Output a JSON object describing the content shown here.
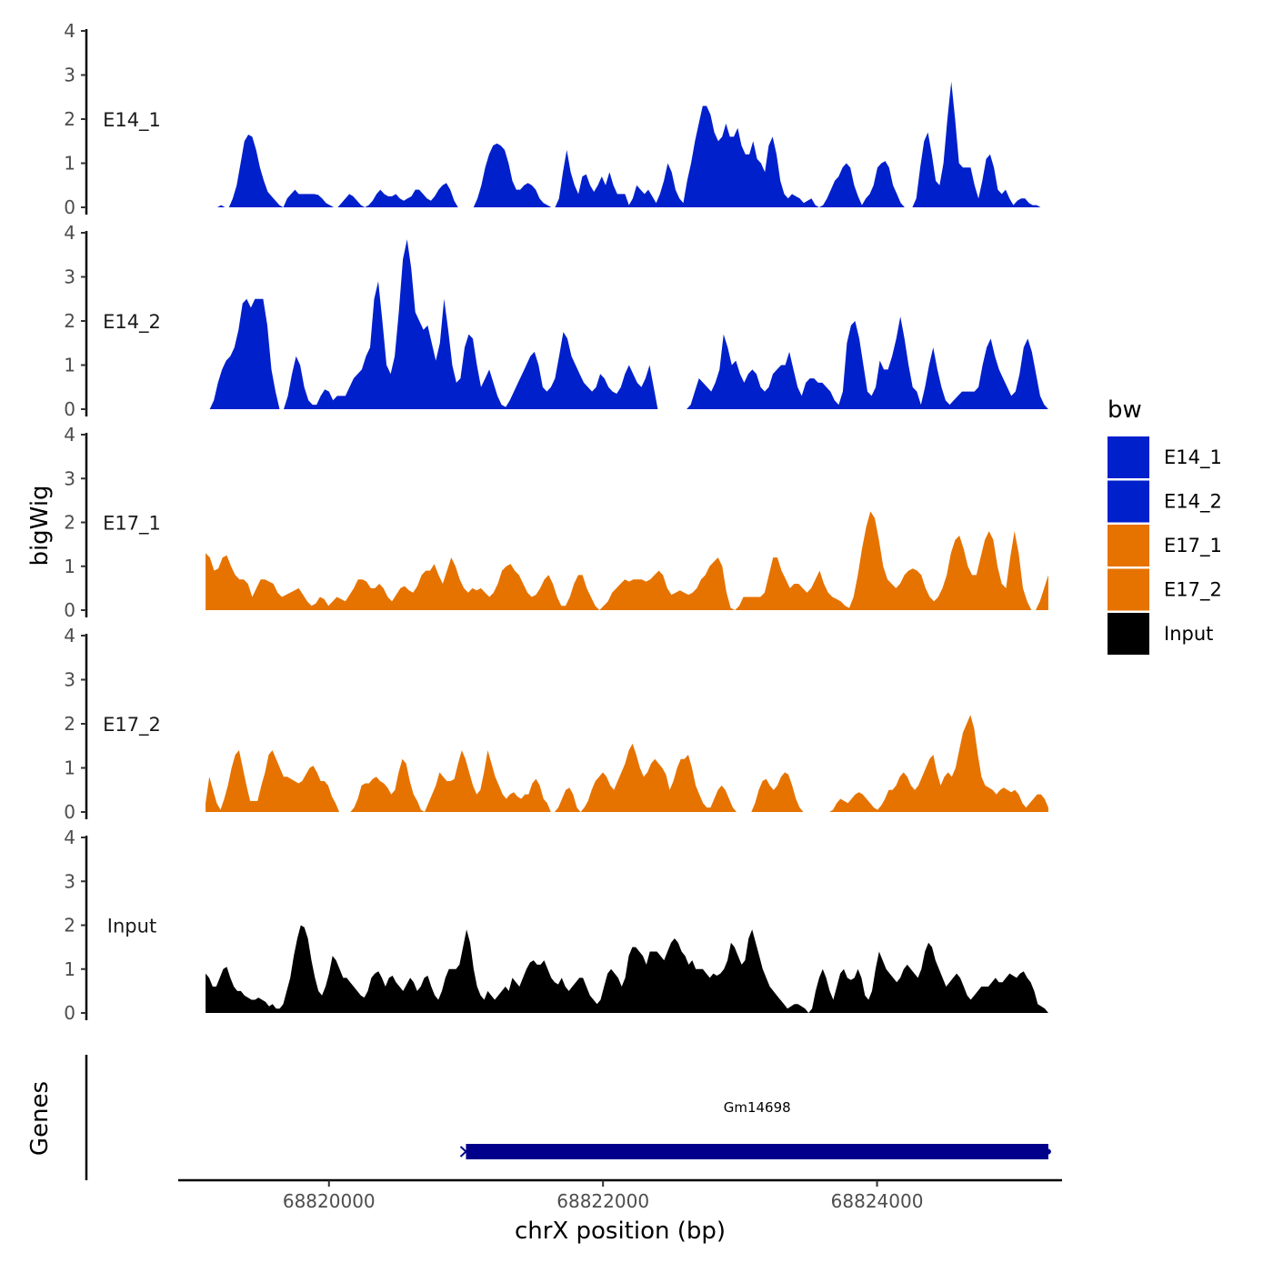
{
  "chart_data": {
    "type": "area",
    "title": "",
    "ylabel": "bigWig",
    "genes_label": "Genes",
    "xlabel": "chrX position (bp)",
    "xlim": [
      68818900,
      68825350
    ],
    "data_range": [
      68819100,
      68825250
    ],
    "ylim": [
      0,
      4
    ],
    "y_ticks": [
      0,
      1,
      2,
      3,
      4
    ],
    "x_ticks": [
      {
        "value": 68820000,
        "label": "68820000"
      },
      {
        "value": 68822000,
        "label": "68822000"
      },
      {
        "value": 68824000,
        "label": "68824000"
      }
    ],
    "tracks": [
      {
        "name": "E14_1",
        "color": "#0020cc",
        "values": [
          0,
          0,
          0,
          0,
          0.05,
          0,
          0,
          0.2,
          0.5,
          1.0,
          1.5,
          1.65,
          1.6,
          1.3,
          0.9,
          0.6,
          0.35,
          0.25,
          0.15,
          0.05,
          0,
          0.2,
          0.3,
          0.4,
          0.3,
          0.3,
          0.3,
          0.3,
          0.3,
          0.28,
          0.2,
          0.1,
          0.05,
          0,
          0,
          0.1,
          0.2,
          0.3,
          0.25,
          0.15,
          0.05,
          0,
          0.05,
          0.15,
          0.3,
          0.4,
          0.3,
          0.25,
          0.25,
          0.3,
          0.2,
          0.15,
          0.2,
          0.25,
          0.4,
          0.4,
          0.3,
          0.2,
          0.15,
          0.25,
          0.4,
          0.5,
          0.55,
          0.4,
          0.15,
          0,
          0,
          0,
          0,
          0,
          0.2,
          0.5,
          0.9,
          1.2,
          1.4,
          1.45,
          1.4,
          1.3,
          1.0,
          0.6,
          0.4,
          0.4,
          0.5,
          0.55,
          0.5,
          0.4,
          0.2,
          0.1,
          0.05,
          0,
          0,
          0.2,
          0.8,
          1.3,
          0.8,
          0.5,
          0.3,
          0.7,
          0.75,
          0.5,
          0.35,
          0.5,
          0.7,
          0.5,
          0.8,
          0.5,
          0.3,
          0.3,
          0.3,
          0.05,
          0.2,
          0.5,
          0.4,
          0.3,
          0.4,
          0.25,
          0.1,
          0.3,
          0.6,
          1.0,
          0.8,
          0.4,
          0.2,
          0.1,
          0.6,
          1.0,
          1.5,
          1.9,
          2.3,
          2.3,
          2.1,
          1.7,
          1.5,
          1.6,
          1.9,
          1.6,
          1.6,
          1.8,
          1.4,
          1.2,
          1.2,
          1.5,
          1.1,
          1.0,
          0.8,
          1.4,
          1.6,
          1.2,
          0.6,
          0.3,
          0.2,
          0.3,
          0.25,
          0.2,
          0.1,
          0.15,
          0.2,
          0.05,
          0,
          0.05,
          0.2,
          0.4,
          0.6,
          0.7,
          0.9,
          1.0,
          0.9,
          0.5,
          0.25,
          0.05,
          0.2,
          0.3,
          0.5,
          0.9,
          1.0,
          1.05,
          0.9,
          0.5,
          0.3,
          0.1,
          0,
          0,
          0,
          0.2,
          0.9,
          1.5,
          1.7,
          1.2,
          0.6,
          0.5,
          1.0,
          2.0,
          2.85,
          2.0,
          1.0,
          0.9,
          0.9,
          0.9,
          0.5,
          0.2,
          0.6,
          1.1,
          1.2,
          0.9,
          0.4,
          0.3,
          0.4,
          0.2,
          0.05,
          0.15,
          0.2,
          0.2,
          0.1,
          0.05,
          0.05,
          0,
          0,
          0
        ]
      },
      {
        "name": "E14_2",
        "color": "#0020cc",
        "values": [
          0,
          0,
          0.2,
          0.6,
          0.9,
          1.1,
          1.2,
          1.4,
          1.8,
          2.4,
          2.5,
          2.3,
          2.5,
          2.5,
          2.5,
          1.9,
          0.9,
          0.4,
          0,
          0,
          0.3,
          0.8,
          1.2,
          1.0,
          0.5,
          0.2,
          0.1,
          0.1,
          0.3,
          0.45,
          0.4,
          0.2,
          0.3,
          0.3,
          0.3,
          0.5,
          0.7,
          0.8,
          0.9,
          1.2,
          1.4,
          2.5,
          2.9,
          2.0,
          1.0,
          0.8,
          1.2,
          2.2,
          3.4,
          3.85,
          3.2,
          2.2,
          2.0,
          1.8,
          1.9,
          1.5,
          1.1,
          1.5,
          2.5,
          1.8,
          1.0,
          0.6,
          0.7,
          1.4,
          1.7,
          1.6,
          1.0,
          0.5,
          0.7,
          0.9,
          0.6,
          0.3,
          0.1,
          0.05,
          0.2,
          0.4,
          0.6,
          0.8,
          1.0,
          1.2,
          1.3,
          1.0,
          0.5,
          0.4,
          0.5,
          0.7,
          1.2,
          1.75,
          1.6,
          1.2,
          1.0,
          0.8,
          0.6,
          0.5,
          0.4,
          0.5,
          0.8,
          0.7,
          0.5,
          0.4,
          0.35,
          0.5,
          0.8,
          1.0,
          0.8,
          0.6,
          0.5,
          0.7,
          1.0,
          0.5,
          0,
          0,
          0,
          0,
          0,
          0,
          0,
          0,
          0.1,
          0.4,
          0.7,
          0.6,
          0.5,
          0.4,
          0.6,
          0.9,
          1.7,
          1.4,
          1.0,
          1.1,
          0.8,
          0.6,
          0.8,
          0.9,
          0.8,
          0.5,
          0.4,
          0.5,
          0.8,
          0.9,
          1.0,
          1.0,
          1.3,
          0.9,
          0.5,
          0.3,
          0.6,
          0.7,
          0.7,
          0.6,
          0.6,
          0.5,
          0.4,
          0.2,
          0.1,
          0.4,
          1.5,
          1.9,
          2.0,
          1.6,
          1.0,
          0.4,
          0.3,
          0.5,
          1.1,
          0.9,
          0.9,
          1.2,
          1.6,
          2.1,
          1.6,
          1.0,
          0.5,
          0.4,
          0.1,
          0.5,
          1.0,
          1.4,
          0.9,
          0.5,
          0.2,
          0.1,
          0.2,
          0.3,
          0.4,
          0.4,
          0.4,
          0.4,
          0.5,
          1.0,
          1.4,
          1.6,
          1.2,
          0.9,
          0.7,
          0.5,
          0.3,
          0.4,
          0.8,
          1.4,
          1.6,
          1.3,
          0.8,
          0.3,
          0.1,
          0
        ]
      },
      {
        "name": "E17_1",
        "color": "#e67300",
        "values": [
          1.3,
          1.2,
          0.9,
          0.95,
          1.2,
          1.25,
          1.0,
          0.8,
          0.7,
          0.7,
          0.6,
          0.3,
          0.5,
          0.7,
          0.7,
          0.65,
          0.6,
          0.4,
          0.3,
          0.35,
          0.4,
          0.45,
          0.5,
          0.35,
          0.2,
          0.1,
          0.15,
          0.3,
          0.25,
          0.1,
          0.2,
          0.3,
          0.25,
          0.2,
          0.35,
          0.5,
          0.7,
          0.7,
          0.65,
          0.5,
          0.5,
          0.6,
          0.5,
          0.3,
          0.2,
          0.35,
          0.5,
          0.55,
          0.45,
          0.4,
          0.55,
          0.8,
          0.9,
          0.9,
          1.05,
          0.8,
          0.6,
          0.9,
          1.2,
          1.0,
          0.7,
          0.5,
          0.4,
          0.5,
          0.45,
          0.5,
          0.4,
          0.3,
          0.4,
          0.6,
          0.9,
          1.0,
          1.05,
          0.9,
          0.8,
          0.6,
          0.4,
          0.3,
          0.35,
          0.5,
          0.7,
          0.8,
          0.6,
          0.3,
          0.1,
          0.1,
          0.3,
          0.6,
          0.8,
          0.8,
          0.5,
          0.3,
          0.1,
          0,
          0.1,
          0.2,
          0.4,
          0.5,
          0.6,
          0.7,
          0.65,
          0.7,
          0.7,
          0.7,
          0.65,
          0.7,
          0.8,
          0.9,
          0.8,
          0.5,
          0.35,
          0.4,
          0.45,
          0.4,
          0.35,
          0.4,
          0.5,
          0.7,
          0.8,
          1.0,
          1.1,
          1.2,
          1.0,
          0.4,
          0.05,
          0,
          0.1,
          0.3,
          0.3,
          0.3,
          0.3,
          0.3,
          0.4,
          0.8,
          1.2,
          1.2,
          0.9,
          0.7,
          0.5,
          0.6,
          0.6,
          0.5,
          0.4,
          0.5,
          0.7,
          0.9,
          0.6,
          0.4,
          0.3,
          0.25,
          0.2,
          0.1,
          0.05,
          0.3,
          0.8,
          1.4,
          1.9,
          2.25,
          2.1,
          1.6,
          1.0,
          0.7,
          0.6,
          0.5,
          0.6,
          0.8,
          0.9,
          0.95,
          0.9,
          0.8,
          0.5,
          0.3,
          0.2,
          0.3,
          0.5,
          0.8,
          1.3,
          1.6,
          1.7,
          1.4,
          1.0,
          0.8,
          0.8,
          1.2,
          1.6,
          1.8,
          1.6,
          1.0,
          0.6,
          0.5,
          1.2,
          1.8,
          1.3,
          0.5,
          0.2,
          0,
          0,
          0.2,
          0.5,
          0.8
        ]
      },
      {
        "name": "E17_2",
        "color": "#e67300",
        "values": [
          0.2,
          0.8,
          0.5,
          0.2,
          0.05,
          0.3,
          0.6,
          1.0,
          1.3,
          1.4,
          1.0,
          0.6,
          0.25,
          0.25,
          0.25,
          0.6,
          0.9,
          1.3,
          1.4,
          1.2,
          1.0,
          0.8,
          0.8,
          0.75,
          0.7,
          0.65,
          0.7,
          0.85,
          1.0,
          1.05,
          0.9,
          0.7,
          0.7,
          0.6,
          0.35,
          0.2,
          0,
          0,
          0,
          0,
          0.1,
          0.3,
          0.6,
          0.65,
          0.65,
          0.75,
          0.8,
          0.7,
          0.65,
          0.55,
          0.4,
          0.5,
          0.9,
          1.2,
          1.1,
          0.7,
          0.4,
          0.25,
          0.05,
          0,
          0.2,
          0.4,
          0.6,
          0.9,
          0.8,
          0.7,
          0.7,
          0.75,
          1.1,
          1.4,
          1.2,
          0.9,
          0.6,
          0.4,
          0.5,
          0.9,
          1.4,
          1.1,
          0.8,
          0.6,
          0.4,
          0.3,
          0.4,
          0.45,
          0.35,
          0.3,
          0.4,
          0.4,
          0.65,
          0.75,
          0.6,
          0.3,
          0.2,
          0,
          0,
          0.1,
          0.3,
          0.5,
          0.55,
          0.4,
          0.1,
          0,
          0.1,
          0.25,
          0.5,
          0.7,
          0.8,
          0.9,
          0.8,
          0.6,
          0.5,
          0.7,
          0.9,
          1.1,
          1.4,
          1.55,
          1.3,
          1.0,
          0.8,
          0.9,
          1.1,
          1.2,
          1.1,
          1.0,
          0.85,
          0.5,
          0.7,
          1.0,
          1.2,
          1.2,
          1.3,
          1.0,
          0.6,
          0.4,
          0.2,
          0.1,
          0.1,
          0.3,
          0.5,
          0.6,
          0.5,
          0.3,
          0.1,
          0,
          0,
          0,
          0,
          0,
          0.2,
          0.5,
          0.7,
          0.75,
          0.6,
          0.5,
          0.6,
          0.8,
          0.9,
          0.85,
          0.6,
          0.3,
          0.1,
          0,
          0,
          0,
          0,
          0,
          0,
          0,
          0,
          0.05,
          0.2,
          0.3,
          0.25,
          0.2,
          0.3,
          0.4,
          0.45,
          0.4,
          0.3,
          0.2,
          0.1,
          0.05,
          0.15,
          0.3,
          0.5,
          0.5,
          0.6,
          0.8,
          0.9,
          0.8,
          0.6,
          0.5,
          0.6,
          0.8,
          1.0,
          1.2,
          1.3,
          0.9,
          0.6,
          0.8,
          0.9,
          0.8,
          1.0,
          1.4,
          1.8,
          2.0,
          2.2,
          1.9,
          1.3,
          0.8,
          0.6,
          0.55,
          0.5,
          0.4,
          0.5,
          0.55,
          0.5,
          0.45,
          0.5,
          0.4,
          0.2,
          0.1,
          0.2,
          0.3,
          0.4,
          0.4,
          0.3,
          0.1
        ]
      },
      {
        "name": "Input",
        "color": "#000000",
        "values": [
          0.9,
          0.8,
          0.6,
          0.6,
          0.8,
          1.0,
          1.05,
          0.8,
          0.6,
          0.5,
          0.5,
          0.4,
          0.35,
          0.3,
          0.3,
          0.35,
          0.3,
          0.25,
          0.15,
          0.2,
          0.1,
          0.1,
          0.2,
          0.5,
          0.8,
          1.3,
          1.7,
          2.0,
          1.95,
          1.7,
          1.2,
          0.8,
          0.5,
          0.4,
          0.6,
          0.9,
          1.3,
          1.2,
          1.0,
          0.8,
          0.8,
          0.7,
          0.6,
          0.5,
          0.4,
          0.35,
          0.5,
          0.8,
          0.9,
          0.95,
          0.8,
          0.6,
          0.8,
          0.85,
          0.7,
          0.6,
          0.5,
          0.65,
          0.8,
          0.7,
          0.5,
          0.6,
          0.8,
          0.85,
          0.6,
          0.4,
          0.3,
          0.5,
          0.8,
          1.0,
          1.0,
          1.0,
          1.1,
          1.5,
          1.9,
          1.6,
          1.0,
          0.6,
          0.4,
          0.3,
          0.5,
          0.4,
          0.3,
          0.4,
          0.5,
          0.6,
          0.5,
          0.8,
          0.7,
          0.6,
          0.8,
          1.0,
          1.15,
          1.2,
          1.1,
          1.1,
          1.2,
          1.0,
          0.8,
          0.7,
          0.65,
          0.8,
          0.6,
          0.5,
          0.6,
          0.7,
          0.8,
          0.8,
          0.6,
          0.4,
          0.3,
          0.2,
          0.3,
          0.6,
          0.9,
          1.0,
          0.9,
          0.8,
          0.6,
          0.8,
          1.3,
          1.5,
          1.5,
          1.4,
          1.3,
          1.1,
          1.4,
          1.4,
          1.4,
          1.3,
          1.2,
          1.4,
          1.6,
          1.7,
          1.6,
          1.4,
          1.3,
          1.1,
          1.2,
          1.0,
          1.0,
          1.0,
          0.9,
          0.8,
          0.9,
          0.85,
          0.9,
          1.0,
          1.2,
          1.6,
          1.5,
          1.3,
          1.1,
          1.2,
          1.7,
          1.9,
          1.6,
          1.3,
          1.0,
          0.8,
          0.6,
          0.5,
          0.4,
          0.3,
          0.2,
          0.1,
          0.15,
          0.2,
          0.2,
          0.15,
          0.1,
          0,
          0.1,
          0.5,
          0.8,
          1.0,
          0.8,
          0.5,
          0.3,
          0.6,
          0.9,
          1.0,
          0.8,
          0.75,
          0.8,
          1.0,
          0.8,
          0.4,
          0.3,
          0.5,
          1.0,
          1.4,
          1.2,
          1.0,
          0.9,
          0.8,
          0.7,
          0.8,
          1.0,
          1.1,
          1.0,
          0.9,
          0.8,
          1.0,
          1.4,
          1.6,
          1.5,
          1.2,
          1.0,
          0.8,
          0.6,
          0.7,
          0.8,
          0.9,
          0.8,
          0.6,
          0.4,
          0.3,
          0.4,
          0.5,
          0.6,
          0.6,
          0.6,
          0.7,
          0.8,
          0.7,
          0.7,
          0.8,
          0.9,
          0.85,
          0.8,
          0.9,
          0.95,
          0.8,
          0.7,
          0.5,
          0.2,
          0.15,
          0.1,
          0
        ]
      }
    ],
    "genes": [
      {
        "name": "Gm14698",
        "start": 68821000,
        "end": 68825250,
        "strand": "-",
        "color": "#00008b"
      }
    ],
    "legend": {
      "title": "bw",
      "position": "right",
      "entries": [
        {
          "label": "E14_1",
          "color": "#0020cc"
        },
        {
          "label": "E14_2",
          "color": "#0020cc"
        },
        {
          "label": "E17_1",
          "color": "#e67300"
        },
        {
          "label": "E17_2",
          "color": "#e67300"
        },
        {
          "label": "Input",
          "color": "#000000"
        }
      ]
    }
  }
}
